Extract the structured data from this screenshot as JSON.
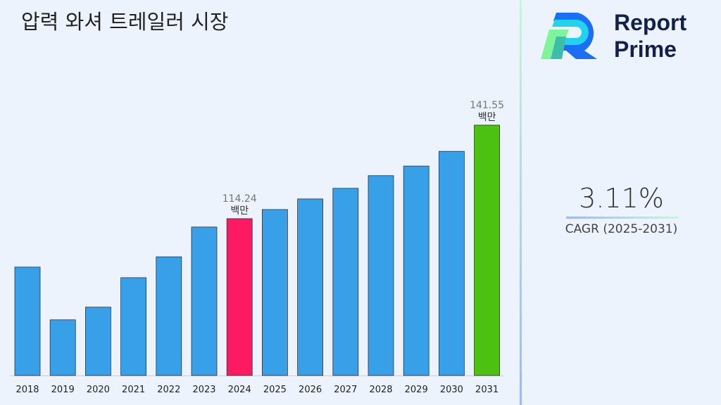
{
  "title": "압력 와셔 트레일러 시장",
  "logo": {
    "line1": "Report",
    "line2": "Prime"
  },
  "cagr": {
    "value": "3.11%",
    "label": "CAGR (2025-2031)"
  },
  "chart_data": {
    "type": "bar",
    "categories": [
      "2018",
      "2019",
      "2020",
      "2021",
      "2022",
      "2023",
      "2024",
      "2025",
      "2026",
      "2027",
      "2028",
      "2029",
      "2030",
      "2031"
    ],
    "values": [
      100.1,
      84.7,
      88.4,
      97.0,
      103.1,
      111.8,
      114.24,
      116.9,
      120.0,
      123.1,
      126.8,
      129.6,
      133.9,
      141.55
    ],
    "colors": [
      "#38a0e8",
      "#38a0e8",
      "#38a0e8",
      "#38a0e8",
      "#38a0e8",
      "#38a0e8",
      "#fe1a63",
      "#38a0e8",
      "#38a0e8",
      "#38a0e8",
      "#38a0e8",
      "#38a0e8",
      "#38a0e8",
      "#4cc10f"
    ],
    "annotations": [
      {
        "category": "2024",
        "value": "114.24",
        "unit": "백만"
      },
      {
        "category": "2031",
        "value": "141.55",
        "unit": "백만"
      }
    ],
    "ylim": [
      68.44,
      145
    ],
    "grid": false
  }
}
